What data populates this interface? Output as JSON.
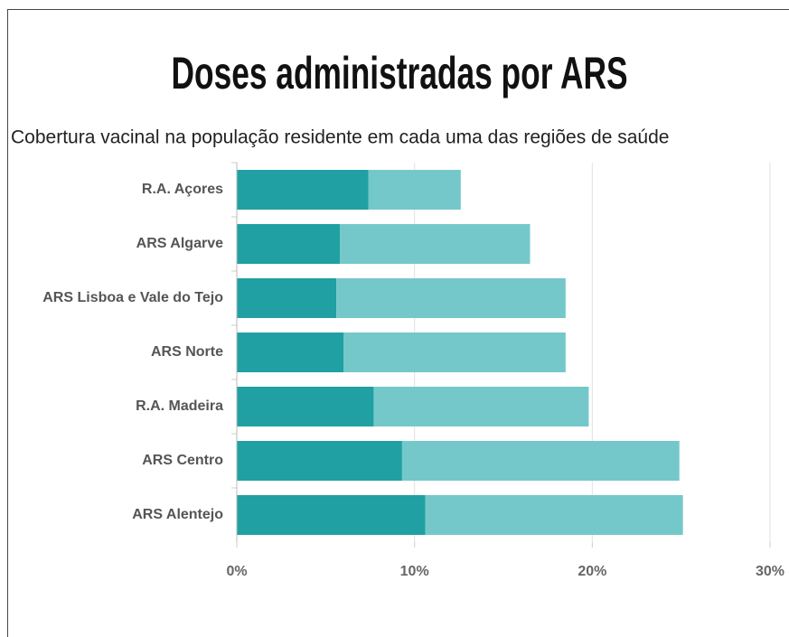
{
  "chart_data": {
    "type": "bar",
    "orientation": "horizontal",
    "stacked": true,
    "title": "Doses administradas por ARS",
    "subtitle": "Cobertura vacinal na população residente em cada uma das regiões de saúde",
    "categories": [
      "R.A. Açores",
      "ARS Algarve",
      "ARS Lisboa e Vale do Tejo",
      "ARS Norte",
      "R.A. Madeira",
      "ARS Centro",
      "ARS Alentejo"
    ],
    "series": [
      {
        "color": "#20a0a2",
        "values": [
          7.4,
          5.8,
          5.6,
          6.0,
          7.7,
          9.3,
          10.6
        ]
      },
      {
        "color": "#74c8ca",
        "values": [
          5.2,
          10.7,
          12.9,
          12.5,
          12.1,
          15.6,
          14.5
        ]
      }
    ],
    "xlim": [
      0,
      30
    ],
    "xticks": [
      {
        "value": 0,
        "label": "0%"
      },
      {
        "value": 10,
        "label": "10%"
      },
      {
        "value": 20,
        "label": "20%"
      },
      {
        "value": 30,
        "label": "30%"
      }
    ],
    "grid": true
  }
}
